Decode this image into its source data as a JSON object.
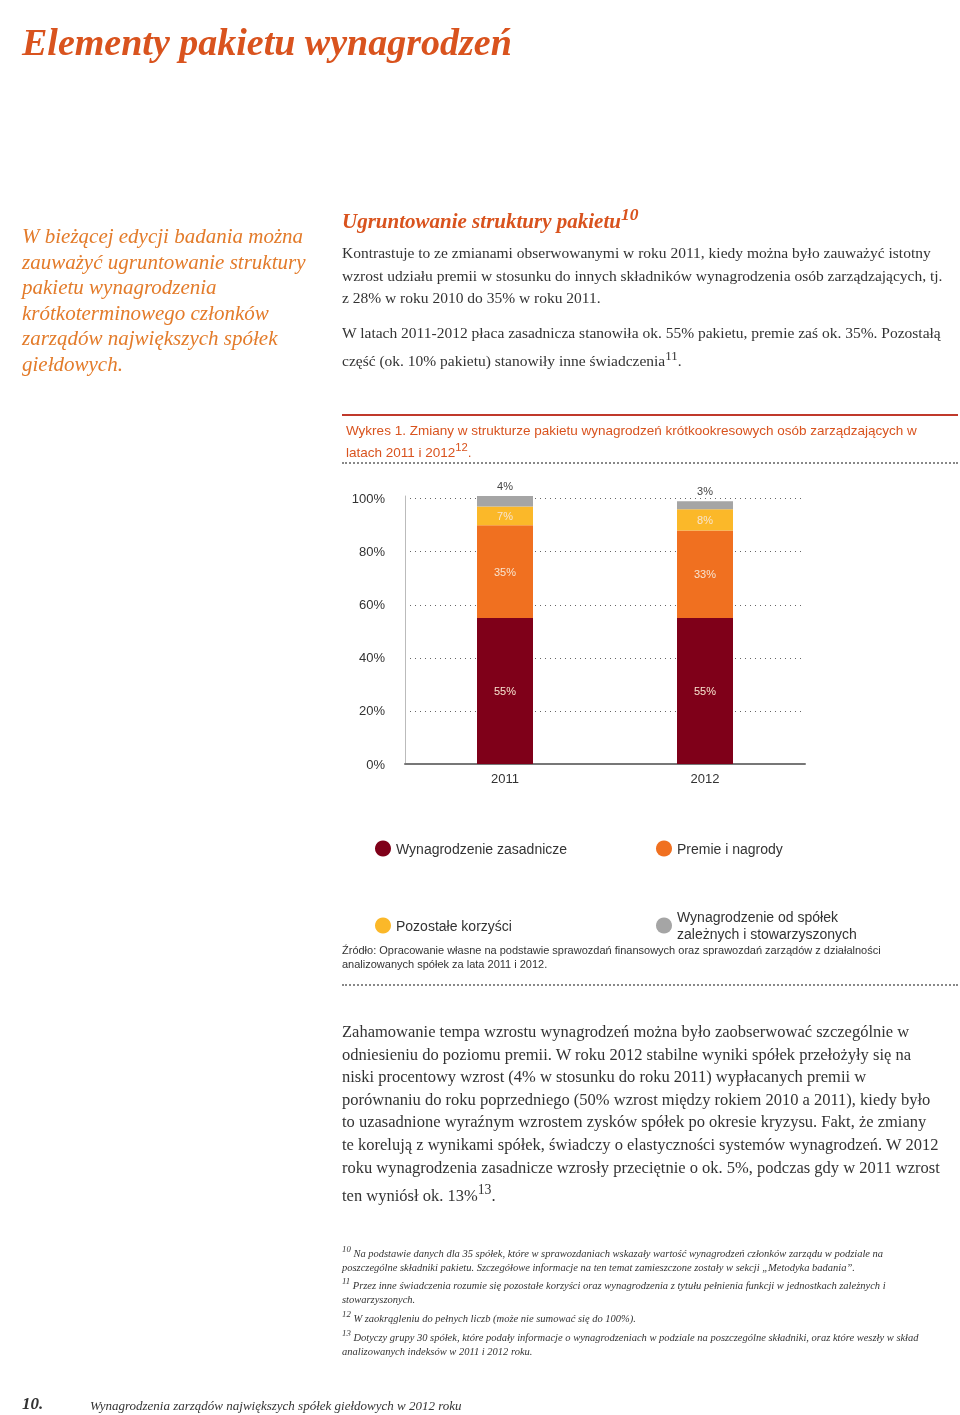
{
  "chart_data": {
    "type": "bar",
    "stacked": true,
    "title": "Wykres 1. Zmiany w strukturze pakietu wynagrodzeń krótkookresowych osób zarządzających w latach 2011 i 2012$^{12}$.",
    "categories": [
      "2011",
      "2012"
    ],
    "series": [
      {
        "name": "Wynagrodzenie zasadnicze",
        "color": "#7f0019",
        "values": [
          55,
          55
        ],
        "value_labels": [
          "55%",
          "55%"
        ]
      },
      {
        "name": "Premie i nagrody",
        "color": "#f07020",
        "values": [
          35,
          33
        ],
        "value_labels": [
          "35%",
          "33%"
        ]
      },
      {
        "name": "Pozostałe korzyści",
        "color": "#fbb829",
        "values": [
          7,
          8
        ],
        "value_labels": [
          "7%",
          "8%"
        ]
      },
      {
        "name": "Wynagrodzenie od spółek zależnych i stowarzyszonych",
        "color": "#a5a5a5",
        "values": [
          4,
          3
        ],
        "value_labels": [
          "4%",
          "3%"
        ]
      }
    ],
    "ylim": [
      0,
      101
    ],
    "yticks": [
      {
        "value": 0,
        "label": "0%"
      },
      {
        "value": 20,
        "label": "20%"
      },
      {
        "value": 40,
        "label": "40%"
      },
      {
        "value": 60,
        "label": "60%"
      },
      {
        "value": 80,
        "label": "80%"
      },
      {
        "value": 100,
        "label": "100%"
      }
    ],
    "grid": "y",
    "legend": "bottom",
    "annotations": [
      "Elementy pakietu wynagrodzeń",
      "W bieżącej edycji badania można zauważyć ugruntowanie struktury pakietu wynagrodzenia krótkoterminowego członków zarządów największych spółek giełdowych.",
      "Ugruntowanie struktury pakietu$^{10}$",
      "Kontrastuje to ze zmianami obserwowanymi w roku 2011, kiedy można było zauważyć istotny wzrost udziału premii w stosunku do innych składników wynagrodzenia osób zarządzających, tj. z 28% w roku 2010 do 35% w roku 2011.",
      "W latach 2011-2012 płaca zasadnicza stanowiła ok. 55% pakietu, premie zaś ok. 35%. Pozostałą część (ok. 10% pakietu) stanowiły inne świadczenia$^{11}$.",
      "Źródło: Opracowanie własne na podstawie sprawozdań finansowych oraz sprawozdań zarządów z działalności analizowanych spółek za lata 2011 i 2012.",
      "Zahamowanie tempa wzrostu wynagrodzeń można było zaobserwować szczególnie w odniesieniu do poziomu premii. W roku 2012 stabilne wyniki spółek przełożyły się na niski procentowy wzrost (4% w stosunku do roku 2011) wypłacanych premii w porównaniu do roku poprzedniego (50% wzrost między rokiem 2010 a 2011), kiedy było to uzasadnione wyraźnym wzrostem zysków spółek po okresie kryzysu. Fakt, że zmiany te korelują z wynikami spółek, świadczy o elastyczności systemów wynagrodzeń. W 2012 roku wynagrodzenia zasadnicze wzrosły przeciętnie o ok. 5%, podczas gdy w 2011 wzrost ten wyniósł ok. 13%$^{13}$.",
      "$^{10}$ Na podstawie danych dla 35 spółek, które w sprawozdaniach wskazały wartość wynagrodzeń członków zarządu w podziale na poszczególne składniki pakietu. Szczegółowe informacje na ten temat zamieszczone zostały w sekcji „Metodyka badania”.",
      "$^{11}$ Przez inne świadczenia rozumie się pozostałe korzyści oraz wynagrodzenia z tytułu pełnienia funkcji w jednostkach zależnych i stowarzyszonych.",
      "$^{12}$ W zaokrągleniu do pełnych liczb (może nie sumować się do 100%).",
      "$^{13}$ Dotyczy grupy 30 spółek, które podały informacje o wynagrodzeniach w podziale na poszczególne składniki, oraz które weszły w skład analizowanych indeksów w 2011 i 2012 roku.",
      "10.",
      "Wynagrodzenia zarządów największych spółek giełdowych w 2012 roku"
    ]
  }
}
